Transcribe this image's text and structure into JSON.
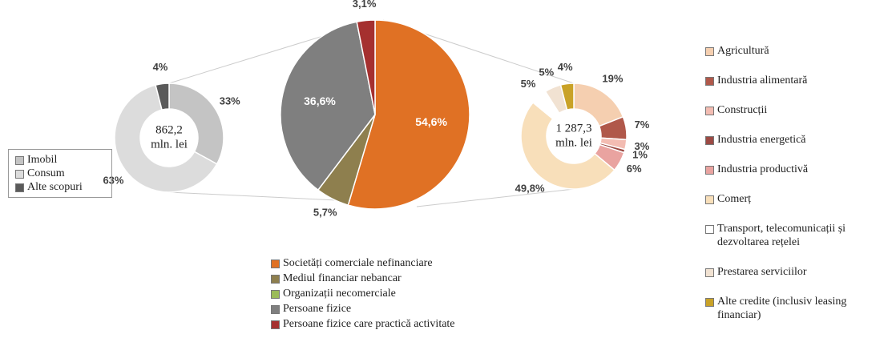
{
  "chart_data": [
    {
      "type": "donut",
      "center_label": [
        "862,2",
        "mln. lei"
      ],
      "categories": [
        "Imobil",
        "Consum",
        "Alte scopuri"
      ],
      "values": [
        33,
        63,
        4
      ],
      "value_labels": [
        "33%",
        "63%",
        "4%"
      ],
      "colors": [
        "#c4c4c4",
        "#dcdcdc",
        "#5a5a5a"
      ]
    },
    {
      "type": "pie",
      "categories": [
        "Societăți comerciale nefinanciare",
        "Mediul financiar nebancar",
        "Organizații necomerciale",
        "Persoane fizice",
        "Persoane fizice care practică activitate"
      ],
      "values": [
        54.6,
        5.7,
        0,
        36.6,
        3.1
      ],
      "value_labels": [
        "54,6%",
        "5,7%",
        null,
        "36,6%",
        "3,1%"
      ],
      "colors": [
        "#e07124",
        "#8e7f4e",
        "#9bbb59",
        "#7f7f7f",
        "#a5302f"
      ]
    },
    {
      "type": "donut",
      "center_label": [
        "1 287,3",
        "mln. lei"
      ],
      "categories": [
        "Agricultură",
        "Industria alimentară",
        "Construcții",
        "Industria energetică",
        "Industria productivă",
        "Comerț",
        "Transport, telecomunicații și dezvoltarea rețelei",
        "Prestarea serviciilor",
        "Alte credite (inclusiv leasing financiar)"
      ],
      "values": [
        19,
        7,
        3,
        1,
        6,
        49.8,
        5,
        5,
        4
      ],
      "value_labels": [
        "19%",
        "7%",
        "3%",
        "1%",
        "6%",
        "49,8%",
        "5%",
        "5%",
        "4%"
      ],
      "colors": [
        "#f5cfb0",
        "#b0584a",
        "#f3bcb2",
        "#9c4a44",
        "#e9a3a0",
        "#f8dfba",
        "#ffffff",
        "#f1e2d2",
        "#c9a227"
      ]
    }
  ]
}
